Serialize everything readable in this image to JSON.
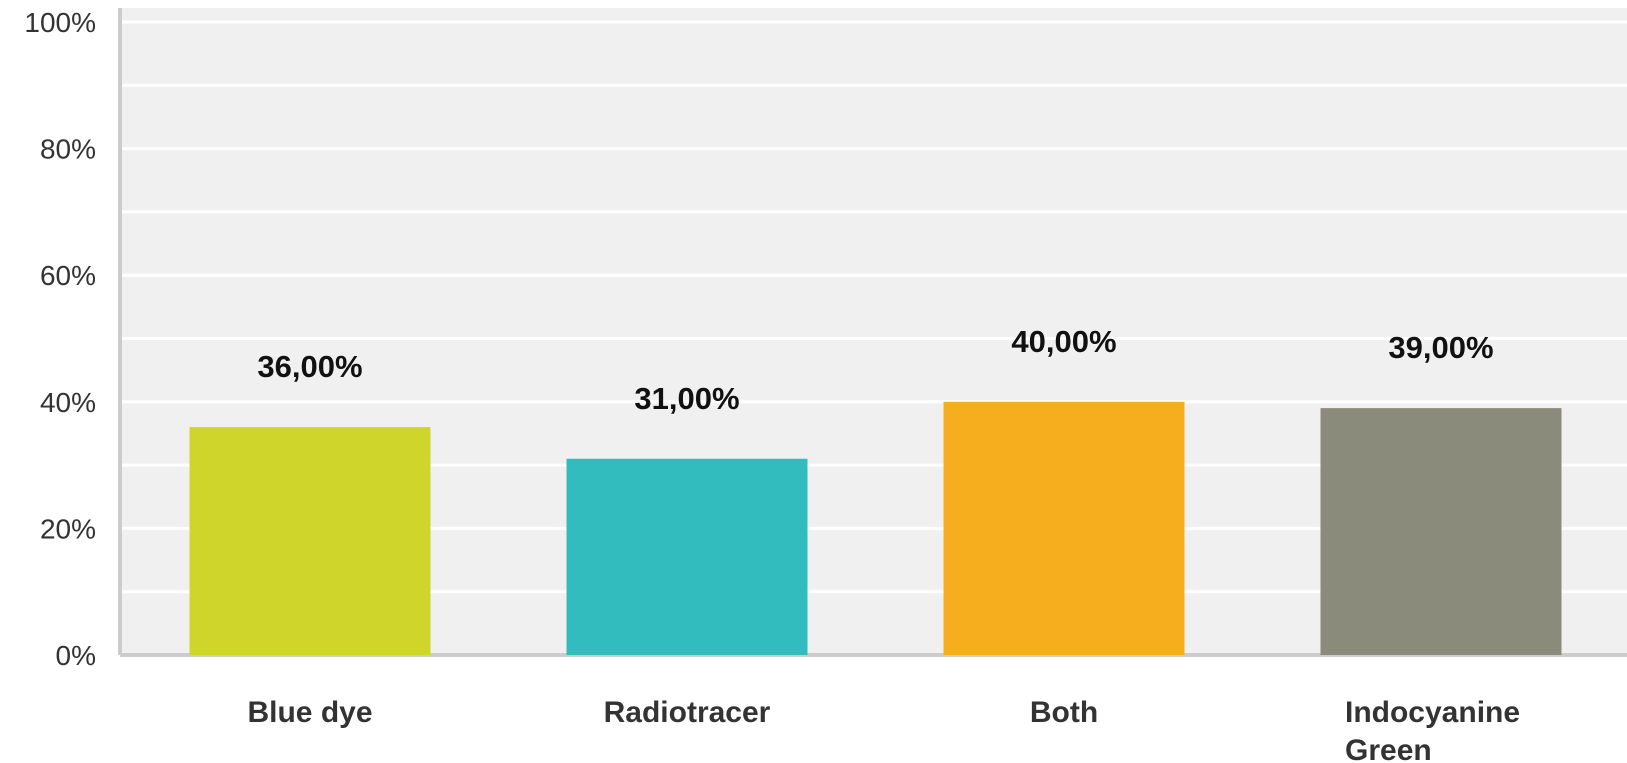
{
  "chart_data": {
    "type": "bar",
    "categories": [
      "Blue dye",
      "Radiotracer",
      "Both",
      "Indocyanine Green"
    ],
    "category_lines": [
      [
        "Blue dye"
      ],
      [
        "Radiotracer"
      ],
      [
        "Both"
      ],
      [
        "Indocyanine",
        "Green"
      ]
    ],
    "values": [
      36,
      31,
      40,
      39
    ],
    "value_labels": [
      "36,00%",
      "31,00%",
      "40,00%",
      "39,00%"
    ],
    "colors": [
      "#cfd52a",
      "#33bcbe",
      "#f6ae1f",
      "#8b8b7b"
    ],
    "ylim": [
      0,
      100
    ],
    "yticks": [
      0,
      20,
      40,
      60,
      80,
      100
    ],
    "ytick_labels": [
      "0%",
      "20%",
      "40%",
      "60%",
      "80%",
      "100%"
    ],
    "grid": true,
    "plot_background": "#f0f0f0",
    "grid_color": "#ffffff",
    "axis_color": "#cccccc"
  }
}
